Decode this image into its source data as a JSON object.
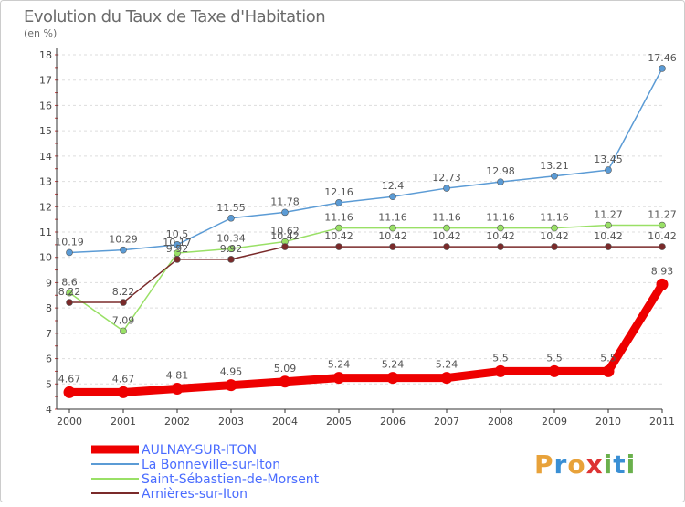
{
  "header": {
    "title": "Evolution du Taux de Taxe d'Habitation",
    "subtitle": "(en %)"
  },
  "brand": {
    "letters": [
      "P",
      "r",
      "o",
      "x",
      "i",
      "t",
      "i"
    ],
    "colors": [
      "#e8a23a",
      "#3a8fd4",
      "#e8a23a",
      "#d33",
      "#6ab04c",
      "#3a8fd4",
      "#6ab04c"
    ]
  },
  "chart_data": {
    "type": "line",
    "title": "Evolution du Taux de Taxe d'Habitation",
    "subtitle": "(en %)",
    "xlabel": "",
    "ylabel": "",
    "x": [
      "2000",
      "2001",
      "2002",
      "2003",
      "2004",
      "2005",
      "2006",
      "2007",
      "2008",
      "2009",
      "2010",
      "2011"
    ],
    "ylim": [
      4,
      18
    ],
    "yticks": [
      "4",
      "5",
      "6",
      "7",
      "8",
      "9",
      "10",
      "11",
      "12",
      "13",
      "14",
      "15",
      "16",
      "17",
      "18"
    ],
    "grid": "horizontal dashed",
    "legend_position": "bottom-left",
    "series": [
      {
        "name": "La Bonneville-sur-Iton",
        "color": "#5b9bd5",
        "style": "thin",
        "values": [
          10.19,
          10.29,
          10.5,
          11.55,
          11.78,
          12.16,
          12.4,
          12.73,
          12.98,
          13.21,
          13.45,
          17.46
        ],
        "labels": [
          "10.19",
          "10.29",
          "10.5",
          "11.55",
          "11.78",
          "12.16",
          "12.4",
          "12.73",
          "12.98",
          "13.21",
          "13.45",
          "17.46"
        ]
      },
      {
        "name": "Saint-Sébastien-de-Morsent",
        "color": "#99e066",
        "style": "thin",
        "values": [
          8.6,
          7.09,
          10.17,
          10.34,
          10.62,
          11.16,
          11.16,
          11.16,
          11.16,
          11.16,
          11.27,
          11.27
        ],
        "labels": [
          "8.6",
          "7.09",
          "10.17",
          "10.34",
          "10.62",
          "11.16",
          "11.16",
          "11.16",
          "11.16",
          "11.16",
          "11.27",
          "11.27"
        ]
      },
      {
        "name": "Arnières-sur-Iton",
        "color": "#7a2a2a",
        "style": "thin",
        "values": [
          8.22,
          8.22,
          9.92,
          9.92,
          10.42,
          10.42,
          10.42,
          10.42,
          10.42,
          10.42,
          10.42,
          10.42
        ],
        "labels": [
          "8.22",
          "8.22",
          "9.92",
          "9.92",
          "10.42",
          "10.42",
          "10.42",
          "10.42",
          "10.42",
          "10.42",
          "10.42",
          "10.42"
        ]
      },
      {
        "name": "AULNAY-SUR-ITON",
        "color": "#ee0000",
        "style": "thick",
        "values": [
          4.67,
          4.67,
          4.81,
          4.95,
          5.09,
          5.24,
          5.24,
          5.24,
          5.5,
          5.5,
          5.5,
          8.93
        ],
        "labels": [
          "4.67",
          "4.67",
          "4.81",
          "4.95",
          "5.09",
          "5.24",
          "5.24",
          "5.24",
          "5.5",
          "5.5",
          "5.5",
          "8.93"
        ]
      }
    ],
    "legend": [
      {
        "name": "AULNAY-SUR-ITON",
        "color": "#ee0000",
        "style": "thick"
      },
      {
        "name": "La Bonneville-sur-Iton",
        "color": "#5b9bd5",
        "style": "thin"
      },
      {
        "name": "Saint-Sébastien-de-Morsent",
        "color": "#99e066",
        "style": "thin"
      },
      {
        "name": "Arnières-sur-Iton",
        "color": "#7a2a2a",
        "style": "thin"
      }
    ]
  }
}
